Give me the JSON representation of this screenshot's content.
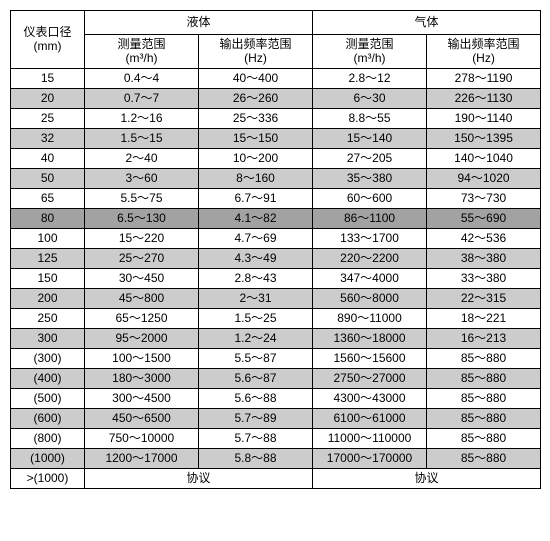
{
  "table": {
    "caption_col": "仪表口径\n(mm)",
    "group_liquid": "液体",
    "group_gas": "气体",
    "sub_measure": "测量范围\n(m³/h)",
    "sub_output": "输出频率范围\n(Hz)",
    "rows": [
      {
        "diam": "15",
        "lm": "0.4～4",
        "lo": "40～400",
        "gm": "2.8～12",
        "go": "278～1190",
        "bg": "#ffffff"
      },
      {
        "diam": "20",
        "lm": "0.7～7",
        "lo": "26～260",
        "gm": "6～30",
        "go": "226～1130",
        "bg": "#cccccc"
      },
      {
        "diam": "25",
        "lm": "1.2～16",
        "lo": "25～336",
        "gm": "8.8～55",
        "go": "190～1140",
        "bg": "#ffffff"
      },
      {
        "diam": "32",
        "lm": "1.5～15",
        "lo": "15～150",
        "gm": "15～140",
        "go": "150～1395",
        "bg": "#cccccc"
      },
      {
        "diam": "40",
        "lm": "2～40",
        "lo": "10～200",
        "gm": "27～205",
        "go": "140～1040",
        "bg": "#ffffff"
      },
      {
        "diam": "50",
        "lm": "3～60",
        "lo": "8～160",
        "gm": "35～380",
        "go": "94～1020",
        "bg": "#cccccc"
      },
      {
        "diam": "65",
        "lm": "5.5～75",
        "lo": "6.7～91",
        "gm": "60～600",
        "go": "73～730",
        "bg": "#ffffff"
      },
      {
        "diam": "80",
        "lm": "6.5～130",
        "lo": "4.1～82",
        "gm": "86～1100",
        "go": "55～690",
        "bg": "#a2a2a2"
      },
      {
        "diam": "100",
        "lm": "15～220",
        "lo": "4.7～69",
        "gm": "133～1700",
        "go": "42～536",
        "bg": "#ffffff"
      },
      {
        "diam": "125",
        "lm": "25～270",
        "lo": "4.3～49",
        "gm": "220～2200",
        "go": "38～380",
        "bg": "#cccccc"
      },
      {
        "diam": "150",
        "lm": "30～450",
        "lo": "2.8～43",
        "gm": "347～4000",
        "go": "33～380",
        "bg": "#ffffff"
      },
      {
        "diam": "200",
        "lm": "45～800",
        "lo": "2～31",
        "gm": "560～8000",
        "go": "22～315",
        "bg": "#cccccc"
      },
      {
        "diam": "250",
        "lm": "65～1250",
        "lo": "1.5～25",
        "gm": "890～11000",
        "go": "18～221",
        "bg": "#ffffff"
      },
      {
        "diam": "300",
        "lm": "95～2000",
        "lo": "1.2～24",
        "gm": "1360～18000",
        "go": "16～213",
        "bg": "#cccccc"
      },
      {
        "diam": "(300)",
        "lm": "100～1500",
        "lo": "5.5～87",
        "gm": "1560～15600",
        "go": "85～880",
        "bg": "#ffffff"
      },
      {
        "diam": "(400)",
        "lm": "180～3000",
        "lo": "5.6～87",
        "gm": "2750～27000",
        "go": "85～880",
        "bg": "#cccccc"
      },
      {
        "diam": "(500)",
        "lm": "300～4500",
        "lo": "5.6～88",
        "gm": "4300～43000",
        "go": "85～880",
        "bg": "#ffffff"
      },
      {
        "diam": "(600)",
        "lm": "450～6500",
        "lo": "5.7～89",
        "gm": "6100～61000",
        "go": "85～880",
        "bg": "#cccccc"
      },
      {
        "diam": "(800)",
        "lm": "750～10000",
        "lo": "5.7～88",
        "gm": "11000～110000",
        "go": "85～880",
        "bg": "#ffffff"
      },
      {
        "diam": "(1000)",
        "lm": "1200～17000",
        "lo": "5.8～88",
        "gm": "17000～170000",
        "go": "85～880",
        "bg": "#cccccc"
      }
    ],
    "footer": {
      "diam": ">(1000)",
      "liquid": "协议",
      "gas": "协议",
      "bg": "#ffffff"
    }
  }
}
